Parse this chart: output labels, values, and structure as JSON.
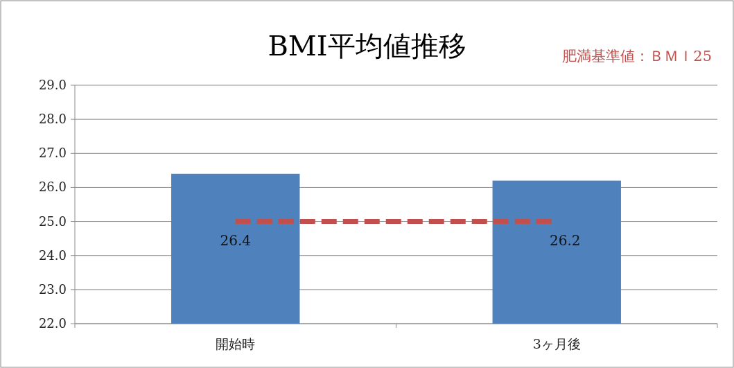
{
  "chart_data": {
    "type": "bar",
    "title": "BMI平均値推移",
    "categories": [
      "開始時",
      "3ヶ月後"
    ],
    "values": [
      26.4,
      26.2
    ],
    "color": "#4f81bd",
    "data_labels": true,
    "ylim": [
      22,
      29
    ],
    "yticks": [
      {
        "value": 22,
        "label": "22.0"
      },
      {
        "value": 23,
        "label": "23.0"
      },
      {
        "value": 24,
        "label": "24.0"
      },
      {
        "value": 25,
        "label": "25.0"
      },
      {
        "value": 26,
        "label": "26.0"
      },
      {
        "value": 27,
        "label": "27.0"
      },
      {
        "value": 28,
        "label": "28.0"
      },
      {
        "value": 29,
        "label": "29.0"
      }
    ],
    "grid": "y",
    "ref_lines": [
      {
        "axis": "y",
        "value": 25,
        "label": "肥満基準値：ＢＭＩ25",
        "color": "#c0504d",
        "line_style": "dashed"
      }
    ]
  }
}
